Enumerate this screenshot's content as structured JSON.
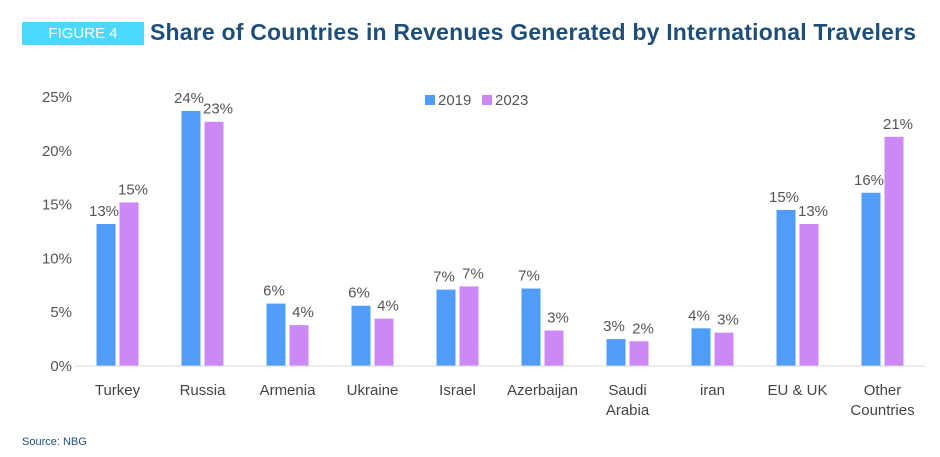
{
  "header": {
    "figure_label": "FIGURE 4",
    "title": "Share of Countries in Revenues Generated by International Travelers"
  },
  "source": "Source: NBG",
  "chart_data": {
    "type": "bar",
    "title": "Share of Countries in Revenues Generated by International Travelers",
    "categories": [
      [
        "Turkey"
      ],
      [
        "Russia"
      ],
      [
        "Armenia"
      ],
      [
        "Ukraine"
      ],
      [
        "Israel"
      ],
      [
        "Azerbaijan"
      ],
      [
        "Saudi",
        "Arabia"
      ],
      [
        "iran"
      ],
      [
        "EU & UK"
      ],
      [
        "Other",
        "Countries"
      ]
    ],
    "series": [
      {
        "name": "2019",
        "color": "#4f9cf9",
        "values": [
          13.2,
          23.7,
          5.8,
          5.6,
          7.1,
          7.2,
          2.5,
          3.5,
          14.5,
          16.1
        ],
        "labels": [
          "13%",
          "24%",
          "6%",
          "6%",
          "7%",
          "7%",
          "3%",
          "4%",
          "15%",
          "16%"
        ]
      },
      {
        "name": "2023",
        "color": "#cc88f5",
        "values": [
          15.2,
          22.7,
          3.8,
          4.4,
          7.4,
          3.3,
          2.3,
          3.1,
          13.2,
          21.3
        ],
        "labels": [
          "15%",
          "23%",
          "4%",
          "4%",
          "7%",
          "3%",
          "2%",
          "3%",
          "13%",
          "21%"
        ]
      }
    ],
    "yticks": [
      "0%",
      "5%",
      "10%",
      "15%",
      "20%",
      "25%"
    ],
    "ylim": [
      0,
      25
    ],
    "legend": "top-center",
    "grid": false,
    "xlabel": "",
    "ylabel": ""
  }
}
